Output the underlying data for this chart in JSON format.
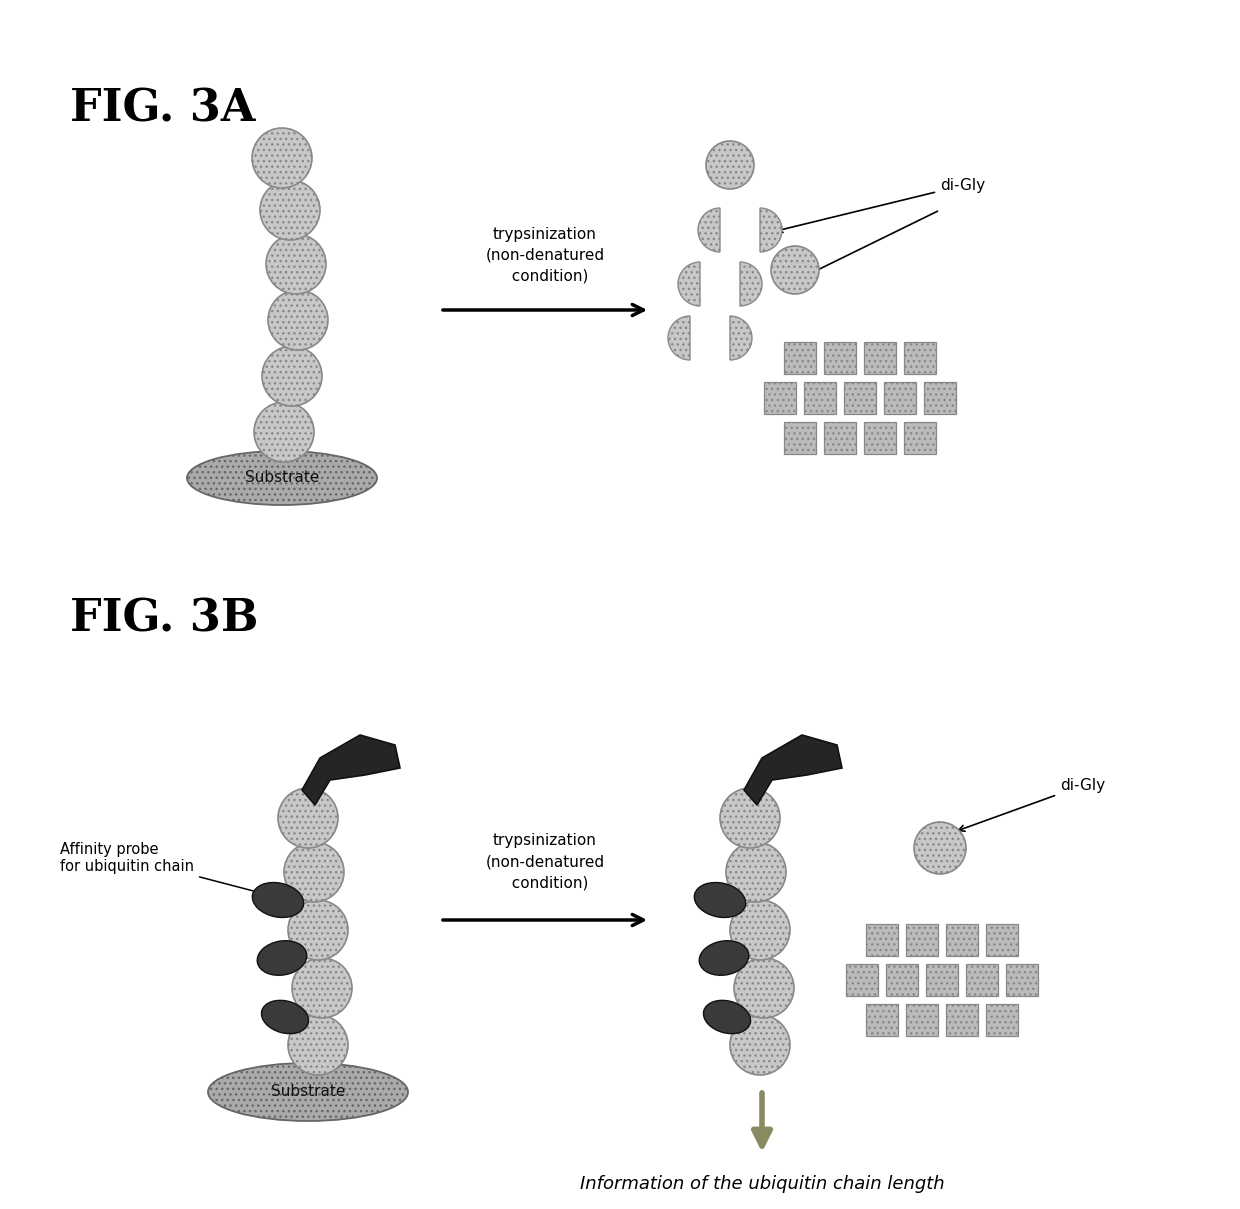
{
  "fig_width": 12.4,
  "fig_height": 12.09,
  "background_color": "#ffffff",
  "title_3a": "FIG. 3A",
  "title_3b": "FIG. 3B",
  "text_trypsinization": "trypsinization\n(non-denatured\n  condition)",
  "text_digly": "di-Gly",
  "text_substrate": "Substrate",
  "text_affinity": "Affinity probe\nfor ubiquitin chain",
  "text_info": "Information of the ubiquitin chain length",
  "ub_color": "#c8c8c8",
  "ub_edge": "#888888",
  "dark_color": "#404040",
  "substrate_color": "#aaaaaa",
  "peptide_color": "#bbbbbb",
  "arrow_color": "#8a8a60"
}
